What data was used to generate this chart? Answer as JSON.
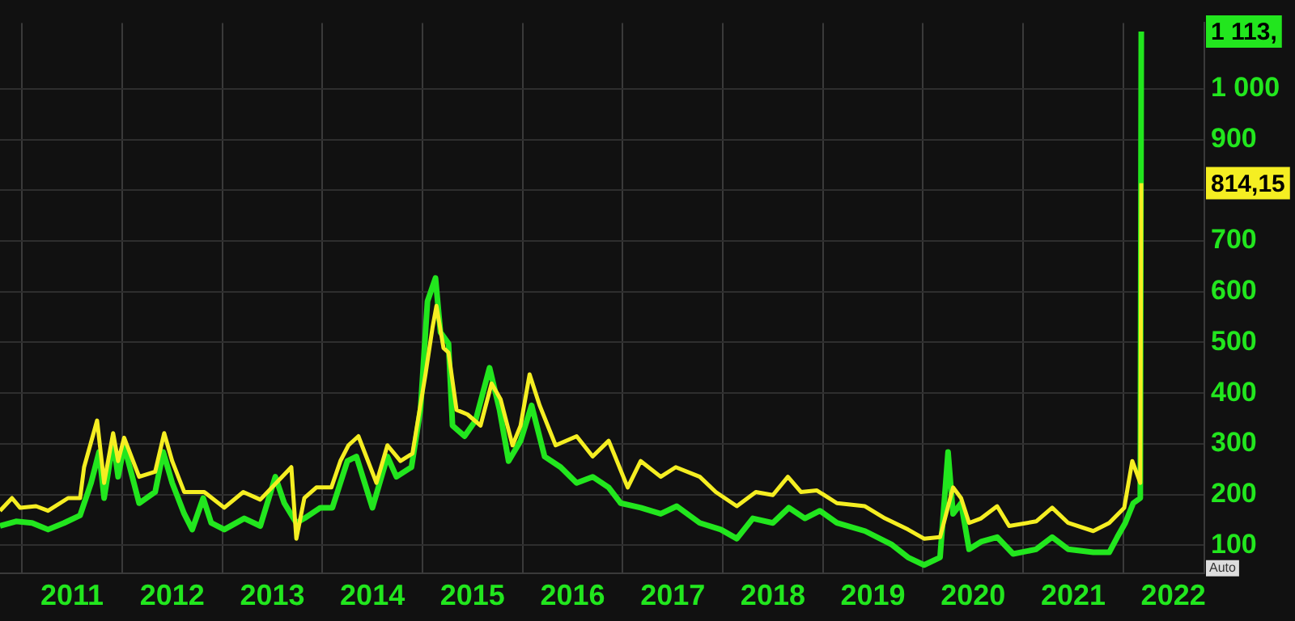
{
  "chart_data": {
    "type": "line",
    "marker": "none",
    "legend": false,
    "grid": true,
    "xlim": [
      2010.78,
      2022.81
    ],
    "xticks": [
      {
        "value": 2011,
        "label": null
      },
      {
        "value": 2011.5,
        "label": "2011"
      },
      {
        "value": 2012,
        "label": null
      },
      {
        "value": 2012.5,
        "label": "2012"
      },
      {
        "value": 2013,
        "label": null
      },
      {
        "value": 2013.5,
        "label": "2013"
      },
      {
        "value": 2014,
        "label": null
      },
      {
        "value": 2014.5,
        "label": "2014"
      },
      {
        "value": 2015,
        "label": null
      },
      {
        "value": 2015.5,
        "label": "2015"
      },
      {
        "value": 2016,
        "label": null
      },
      {
        "value": 2016.5,
        "label": "2016"
      },
      {
        "value": 2017,
        "label": null
      },
      {
        "value": 2017.5,
        "label": "2017"
      },
      {
        "value": 2018,
        "label": null
      },
      {
        "value": 2018.5,
        "label": "2018"
      },
      {
        "value": 2019,
        "label": null
      },
      {
        "value": 2019.5,
        "label": "2019"
      },
      {
        "value": 2020,
        "label": null
      },
      {
        "value": 2020.5,
        "label": "2020"
      },
      {
        "value": 2021,
        "label": null
      },
      {
        "value": 2021.5,
        "label": "2021"
      },
      {
        "value": 2022,
        "label": null
      },
      {
        "value": 2022.5,
        "label": "2022"
      }
    ],
    "ylim": [
      45,
      1130
    ],
    "yticks": [
      100,
      200,
      300,
      400,
      500,
      600,
      700,
      {
        "value": 800,
        "label": null
      },
      900,
      {
        "value": 1000,
        "label": "1 000"
      }
    ],
    "annotations": [
      "1 113,",
      "814,15",
      "Auto"
    ],
    "series": [
      {
        "color": "#22e61e",
        "x": [
          2010.78,
          2010.94,
          2011.1,
          2011.26,
          2011.42,
          2011.58,
          2011.69,
          2011.77,
          2011.82,
          2011.91,
          2011.96,
          2012.02,
          2012.17,
          2012.33,
          2012.41,
          2012.5,
          2012.62,
          2012.7,
          2012.81,
          2012.89,
          2013.02,
          2013.22,
          2013.38,
          2013.53,
          2013.62,
          2013.74,
          2013.82,
          2013.98,
          2014.1,
          2014.25,
          2014.34,
          2014.5,
          2014.65,
          2014.74,
          2014.89,
          2014.98,
          2015.05,
          2015.13,
          2015.18,
          2015.26,
          2015.3,
          2015.42,
          2015.53,
          2015.67,
          2015.77,
          2015.86,
          2015.98,
          2016.09,
          2016.22,
          2016.38,
          2016.54,
          2016.7,
          2016.86,
          2016.98,
          2017.18,
          2017.38,
          2017.54,
          2017.77,
          2017.98,
          2018.14,
          2018.3,
          2018.5,
          2018.66,
          2018.82,
          2018.97,
          2019.14,
          2019.42,
          2019.69,
          2019.85,
          2020.01,
          2020.17,
          2020.25,
          2020.3,
          2020.38,
          2020.46,
          2020.58,
          2020.74,
          2020.9,
          2021.13,
          2021.29,
          2021.45,
          2021.7,
          2021.86,
          2021.94,
          2022.02,
          2022.1,
          2022.17,
          2022.18
        ],
        "values": [
          138,
          147,
          144,
          131,
          144,
          159,
          223,
          284,
          193,
          306,
          235,
          297,
          183,
          205,
          284,
          223,
          162,
          131,
          193,
          144,
          131,
          153,
          138,
          235,
          183,
          144,
          153,
          174,
          174,
          266,
          275,
          174,
          275,
          235,
          254,
          367,
          581,
          627,
          520,
          498,
          336,
          315,
          346,
          450,
          367,
          266,
          306,
          376,
          275,
          254,
          223,
          235,
          214,
          183,
          174,
          162,
          177,
          144,
          131,
          113,
          153,
          144,
          174,
          153,
          168,
          144,
          128,
          101,
          76,
          61,
          76,
          284,
          162,
          183,
          92,
          107,
          116,
          83,
          92,
          116,
          92,
          86,
          86,
          116,
          144,
          183,
          193,
          1113
        ]
      },
      {
        "color": "#f5ee22",
        "x": [
          2010.78,
          2010.9,
          2010.98,
          2011.14,
          2011.26,
          2011.46,
          2011.58,
          2011.62,
          2011.75,
          2011.82,
          2011.91,
          2011.96,
          2012.02,
          2012.17,
          2012.33,
          2012.42,
          2012.5,
          2012.62,
          2012.82,
          2013.02,
          2013.21,
          2013.38,
          2013.69,
          2013.74,
          2013.82,
          2013.94,
          2014.09,
          2014.18,
          2014.26,
          2014.36,
          2014.54,
          2014.65,
          2014.78,
          2014.9,
          2015.03,
          2015.1,
          2015.14,
          2015.21,
          2015.26,
          2015.34,
          2015.45,
          2015.58,
          2015.69,
          2015.78,
          2015.9,
          2015.98,
          2016.07,
          2016.17,
          2016.33,
          2016.54,
          2016.7,
          2016.86,
          2017.05,
          2017.18,
          2017.38,
          2017.53,
          2017.77,
          2017.93,
          2018.14,
          2018.33,
          2018.5,
          2018.65,
          2018.78,
          2018.94,
          2019.14,
          2019.42,
          2019.62,
          2019.85,
          2020.01,
          2020.17,
          2020.3,
          2020.38,
          2020.46,
          2020.58,
          2020.74,
          2020.86,
          2021.13,
          2021.29,
          2021.45,
          2021.7,
          2021.86,
          2022.01,
          2022.09,
          2022.17,
          2022.18
        ],
        "values": [
          168,
          193,
          174,
          177,
          168,
          193,
          193,
          254,
          346,
          223,
          321,
          266,
          312,
          235,
          245,
          321,
          266,
          205,
          205,
          174,
          205,
          190,
          254,
          113,
          193,
          214,
          214,
          266,
          297,
          315,
          223,
          297,
          266,
          281,
          437,
          529,
          572,
          489,
          480,
          367,
          358,
          336,
          419,
          388,
          297,
          336,
          437,
          376,
          297,
          315,
          275,
          306,
          214,
          266,
          235,
          254,
          235,
          205,
          177,
          205,
          199,
          235,
          205,
          208,
          183,
          177,
          153,
          131,
          113,
          116,
          214,
          193,
          144,
          153,
          177,
          138,
          147,
          174,
          144,
          128,
          144,
          174,
          266,
          223,
          814
        ]
      }
    ]
  }
}
